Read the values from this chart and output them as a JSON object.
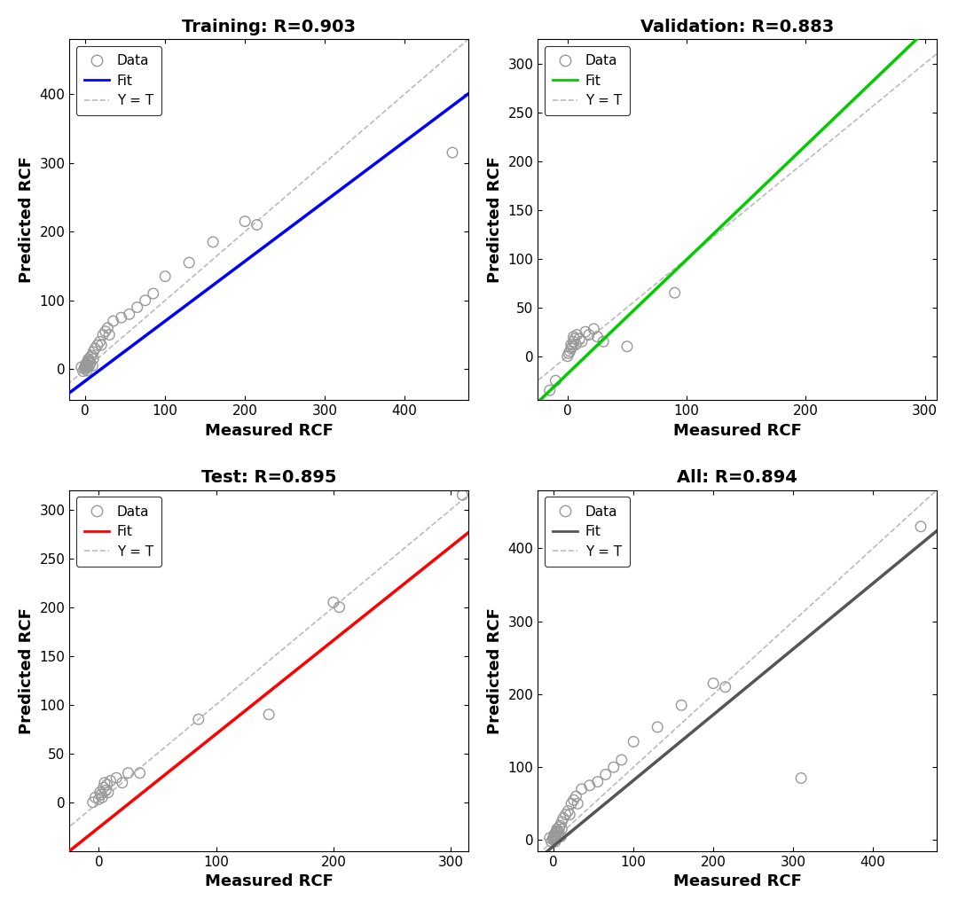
{
  "panels": [
    {
      "title": "Training: R=0.903",
      "fit_color": "#0000FF",
      "fit_slope": 0.87,
      "fit_intercept": -17,
      "xlim": [
        -20,
        480
      ],
      "ylim": [
        -45,
        480
      ],
      "xticks": [
        0,
        100,
        200,
        300,
        400
      ],
      "yticks": [
        0,
        100,
        200,
        300,
        400
      ],
      "scatter_x": [
        -5,
        -3,
        -1,
        0,
        0,
        1,
        1,
        2,
        2,
        3,
        3,
        4,
        4,
        5,
        5,
        6,
        7,
        8,
        9,
        10,
        10,
        12,
        15,
        18,
        20,
        22,
        25,
        28,
        30,
        35,
        45,
        55,
        65,
        75,
        85,
        100,
        130,
        160,
        200,
        215,
        460
      ],
      "scatter_y": [
        3,
        -3,
        2,
        0,
        5,
        3,
        8,
        -2,
        6,
        12,
        4,
        10,
        15,
        5,
        12,
        8,
        18,
        20,
        5,
        25,
        15,
        30,
        35,
        40,
        35,
        50,
        55,
        60,
        50,
        70,
        75,
        80,
        90,
        100,
        110,
        135,
        155,
        185,
        215,
        210,
        315
      ]
    },
    {
      "title": "Validation: R=0.883",
      "fit_color": "#00CC00",
      "fit_slope": 1.17,
      "fit_intercept": -18,
      "xlim": [
        -25,
        310
      ],
      "ylim": [
        -45,
        325
      ],
      "xticks": [
        0,
        100,
        200,
        300
      ],
      "yticks": [
        0,
        50,
        100,
        150,
        200,
        250,
        300
      ],
      "scatter_x": [
        -15,
        -10,
        0,
        1,
        2,
        3,
        3,
        4,
        5,
        5,
        6,
        7,
        8,
        10,
        12,
        15,
        18,
        22,
        25,
        30,
        50,
        90
      ],
      "scatter_y": [
        -35,
        -25,
        0,
        3,
        5,
        8,
        12,
        10,
        15,
        20,
        18,
        12,
        22,
        18,
        15,
        25,
        22,
        28,
        20,
        15,
        10,
        65
      ]
    },
    {
      "title": "Test: R=0.895",
      "fit_color": "#FF0000",
      "fit_slope": 0.96,
      "fit_intercept": -26,
      "xlim": [
        -25,
        315
      ],
      "ylim": [
        -50,
        320
      ],
      "xticks": [
        0,
        100,
        200,
        300
      ],
      "yticks": [
        0,
        50,
        100,
        150,
        200,
        250,
        300
      ],
      "scatter_x": [
        -5,
        -3,
        0,
        1,
        2,
        3,
        4,
        5,
        6,
        7,
        8,
        10,
        15,
        20,
        25,
        35,
        85,
        145,
        200,
        205,
        310
      ],
      "scatter_y": [
        0,
        5,
        3,
        10,
        8,
        5,
        15,
        20,
        12,
        18,
        10,
        22,
        25,
        20,
        30,
        30,
        85,
        90,
        205,
        200,
        315
      ]
    },
    {
      "title": "All: R=0.894",
      "fit_color": "#555555",
      "fit_slope": 0.9,
      "fit_intercept": -8,
      "xlim": [
        -20,
        480
      ],
      "ylim": [
        -15,
        480
      ],
      "xticks": [
        0,
        100,
        200,
        300,
        400
      ],
      "yticks": [
        0,
        100,
        200,
        300,
        400
      ],
      "scatter_x": [
        -5,
        -3,
        -1,
        0,
        0,
        1,
        1,
        2,
        2,
        3,
        3,
        4,
        4,
        5,
        5,
        6,
        7,
        8,
        9,
        10,
        10,
        12,
        15,
        18,
        20,
        22,
        25,
        28,
        30,
        35,
        45,
        55,
        65,
        75,
        85,
        100,
        130,
        160,
        200,
        215,
        310,
        460
      ],
      "scatter_y": [
        3,
        -2,
        2,
        0,
        5,
        3,
        8,
        -2,
        6,
        12,
        4,
        10,
        15,
        5,
        12,
        8,
        18,
        20,
        5,
        25,
        15,
        30,
        35,
        40,
        35,
        50,
        55,
        60,
        50,
        70,
        75,
        80,
        90,
        100,
        110,
        135,
        155,
        185,
        215,
        210,
        85,
        430
      ]
    }
  ]
}
